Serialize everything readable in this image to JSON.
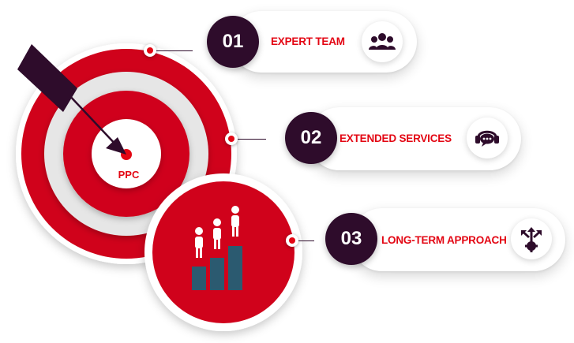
{
  "center": {
    "label": "PPC"
  },
  "colors": {
    "accent": "#e30613",
    "dark": "#2e0c2b",
    "bar": "#2b5a70",
    "ring_light": "#e6e6e6"
  },
  "items": [
    {
      "number": "01",
      "label": "EXPERT TEAM",
      "icon": "users-icon"
    },
    {
      "number": "02",
      "label": "EXTENDED SERVICES",
      "icon": "chat-support-icon"
    },
    {
      "number": "03",
      "label": "LONG-TERM APPROACH",
      "icon": "directions-gear-icon"
    }
  ]
}
